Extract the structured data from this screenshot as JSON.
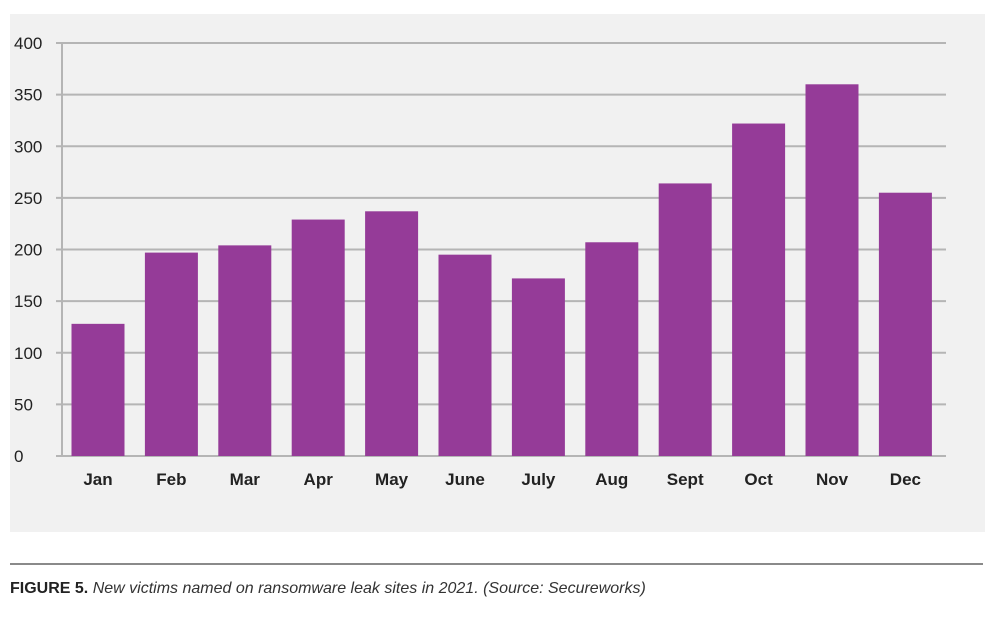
{
  "chart_data": {
    "type": "bar",
    "categories": [
      "Jan",
      "Feb",
      "Mar",
      "Apr",
      "May",
      "June",
      "July",
      "Aug",
      "Sept",
      "Oct",
      "Nov",
      "Dec"
    ],
    "values": [
      128,
      197,
      204,
      229,
      237,
      195,
      172,
      207,
      264,
      322,
      360,
      255
    ],
    "ylim": [
      0,
      400
    ],
    "yticks": [
      0,
      50,
      100,
      150,
      200,
      250,
      300,
      350,
      400
    ],
    "grid": true,
    "colors": {
      "bar": "#953b98",
      "grid": "#b5b5b5",
      "background": "#f1f1f1"
    }
  },
  "caption": {
    "label": "FIGURE 5.",
    "text": "New victims named on ransomware leak sites in 2021. (Source: Secureworks)"
  }
}
